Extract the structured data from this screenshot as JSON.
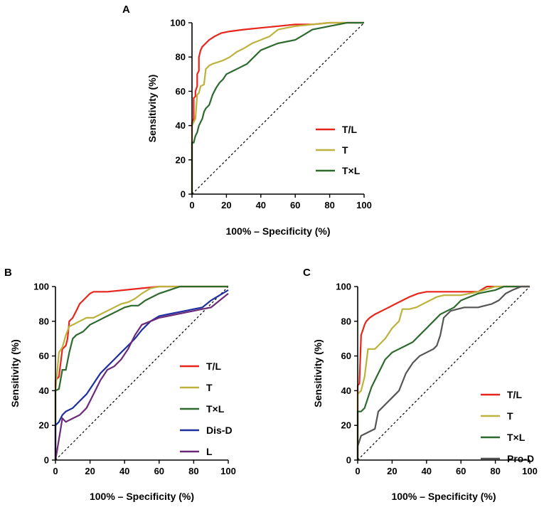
{
  "chart_data": [
    {
      "panel": "A",
      "type": "line",
      "title": "",
      "xlabel": "100% – Specificity (%)",
      "ylabel": "Sensitivity (%)",
      "xlim": [
        0,
        100
      ],
      "ylim": [
        0,
        100
      ],
      "xticks": [
        0,
        20,
        40,
        60,
        80,
        100
      ],
      "yticks": [
        0,
        20,
        40,
        60,
        80,
        100
      ],
      "legend_position": "right",
      "reference_line": "diagonal dashed",
      "series": [
        {
          "name": "T/L",
          "color": "#e8251c",
          "x": [
            0,
            0,
            1,
            1,
            2,
            2,
            3,
            3,
            4,
            4,
            5,
            6,
            8,
            10,
            13,
            17,
            22,
            30,
            40,
            50,
            60,
            70,
            80,
            90,
            100
          ],
          "y": [
            0,
            42,
            44,
            56,
            57,
            60,
            63,
            70,
            72,
            80,
            84,
            86,
            88,
            90,
            92,
            94,
            95,
            96,
            97,
            98,
            99,
            99,
            100,
            100,
            100
          ]
        },
        {
          "name": "T",
          "color": "#bcb23c",
          "x": [
            0,
            0,
            1,
            2,
            3,
            4,
            5,
            7,
            8,
            10,
            12,
            15,
            18,
            22,
            26,
            30,
            35,
            40,
            45,
            50,
            55,
            60,
            70,
            80,
            90,
            100
          ],
          "y": [
            0,
            40,
            42,
            44,
            58,
            59,
            63,
            64,
            73,
            75,
            76,
            77,
            78,
            80,
            83,
            85,
            88,
            90,
            92,
            96,
            97,
            98,
            99,
            100,
            100,
            100
          ]
        },
        {
          "name": "T×L",
          "color": "#2d6a2d",
          "x": [
            0,
            0,
            1,
            2,
            3,
            4,
            5,
            6,
            7,
            8,
            10,
            12,
            14,
            16,
            18,
            20,
            24,
            28,
            32,
            36,
            40,
            45,
            50,
            55,
            60,
            65,
            70,
            75,
            80,
            85,
            90,
            100
          ],
          "y": [
            0,
            30,
            30,
            34,
            36,
            40,
            42,
            44,
            48,
            50,
            52,
            58,
            62,
            65,
            67,
            70,
            72,
            74,
            76,
            80,
            84,
            86,
            88,
            89,
            90,
            93,
            96,
            97,
            98,
            99,
            100,
            100
          ]
        }
      ]
    },
    {
      "panel": "B",
      "type": "line",
      "title": "",
      "xlabel": "100% – Specificity (%)",
      "ylabel": "Sensitivity (%)",
      "xlim": [
        0,
        100
      ],
      "ylim": [
        0,
        100
      ],
      "xticks": [
        0,
        20,
        40,
        60,
        80,
        100
      ],
      "yticks": [
        0,
        20,
        40,
        60,
        80,
        100
      ],
      "legend_position": "right",
      "reference_line": "diagonal dashed",
      "series": [
        {
          "name": "T/L",
          "color": "#e8251c",
          "x": [
            0,
            0,
            2,
            4,
            6,
            7,
            8,
            10,
            12,
            14,
            16,
            18,
            20,
            22,
            30,
            40,
            50,
            60,
            70,
            80,
            90,
            100
          ],
          "y": [
            0,
            46,
            48,
            64,
            66,
            70,
            80,
            82,
            86,
            90,
            92,
            94,
            96,
            97,
            97,
            98,
            99,
            100,
            100,
            100,
            100,
            100
          ]
        },
        {
          "name": "T",
          "color": "#bcb23c",
          "x": [
            0,
            0,
            2,
            4,
            6,
            8,
            10,
            14,
            18,
            22,
            26,
            30,
            34,
            38,
            42,
            46,
            50,
            55,
            60,
            70,
            80,
            90,
            100
          ],
          "y": [
            0,
            40,
            62,
            65,
            72,
            77,
            78,
            80,
            82,
            82,
            84,
            86,
            88,
            90,
            91,
            93,
            96,
            99,
            100,
            100,
            100,
            100,
            100
          ]
        },
        {
          "name": "T×L",
          "color": "#2d6a2d",
          "x": [
            0,
            0,
            2,
            4,
            6,
            8,
            10,
            12,
            16,
            20,
            24,
            28,
            32,
            36,
            40,
            44,
            48,
            52,
            56,
            60,
            66,
            72,
            78,
            84,
            90,
            100
          ],
          "y": [
            0,
            40,
            41,
            52,
            52,
            62,
            70,
            72,
            74,
            78,
            80,
            82,
            84,
            86,
            88,
            89,
            89,
            92,
            94,
            96,
            98,
            100,
            100,
            100,
            100,
            100
          ]
        },
        {
          "name": "Dis-D",
          "color": "#1f2fa0",
          "x": [
            0,
            0,
            2,
            4,
            6,
            10,
            14,
            18,
            22,
            26,
            30,
            34,
            38,
            42,
            46,
            50,
            55,
            60,
            65,
            70,
            75,
            80,
            85,
            90,
            95,
            100
          ],
          "y": [
            0,
            20,
            22,
            26,
            28,
            30,
            34,
            38,
            44,
            50,
            54,
            58,
            62,
            66,
            70,
            75,
            80,
            83,
            84,
            85,
            86,
            87,
            88,
            92,
            95,
            98
          ]
        },
        {
          "name": "L",
          "color": "#6b2a7a",
          "x": [
            0,
            2,
            4,
            6,
            10,
            14,
            18,
            22,
            26,
            30,
            34,
            38,
            42,
            46,
            50,
            55,
            60,
            65,
            70,
            75,
            80,
            85,
            90,
            95,
            100
          ],
          "y": [
            0,
            12,
            24,
            22,
            24,
            26,
            30,
            38,
            46,
            52,
            54,
            58,
            64,
            72,
            78,
            80,
            82,
            83,
            84,
            85,
            86,
            87,
            88,
            92,
            96
          ]
        }
      ]
    },
    {
      "panel": "C",
      "type": "line",
      "title": "",
      "xlabel": "100% – Specificity (%)",
      "ylabel": "Sensitivity (%)",
      "xlim": [
        0,
        100
      ],
      "ylim": [
        0,
        100
      ],
      "xticks": [
        0,
        20,
        40,
        60,
        80,
        100
      ],
      "yticks": [
        0,
        20,
        40,
        60,
        80,
        100
      ],
      "legend_position": "bottom-right",
      "reference_line": "diagonal dashed",
      "series": [
        {
          "name": "T/L",
          "color": "#e8251c",
          "x": [
            0,
            0,
            1,
            2,
            3,
            4,
            5,
            7,
            10,
            14,
            18,
            22,
            26,
            30,
            35,
            40,
            50,
            60,
            70,
            75,
            80,
            90,
            100
          ],
          "y": [
            0,
            43,
            44,
            72,
            75,
            78,
            80,
            82,
            84,
            86,
            88,
            90,
            92,
            94,
            96,
            97,
            97,
            97,
            97,
            100,
            100,
            100,
            100
          ]
        },
        {
          "name": "T",
          "color": "#bcb23c",
          "x": [
            0,
            0,
            2,
            4,
            6,
            8,
            10,
            12,
            16,
            20,
            24,
            26,
            30,
            34,
            38,
            42,
            46,
            50,
            60,
            70,
            80,
            90,
            100
          ],
          "y": [
            0,
            38,
            40,
            48,
            64,
            64,
            64,
            66,
            70,
            76,
            80,
            87,
            87,
            88,
            90,
            92,
            94,
            95,
            95,
            97,
            100,
            100,
            100
          ]
        },
        {
          "name": "T×L",
          "color": "#2d6a2d",
          "x": [
            0,
            0,
            2,
            4,
            6,
            8,
            10,
            12,
            14,
            16,
            18,
            20,
            24,
            28,
            32,
            36,
            40,
            44,
            48,
            52,
            56,
            60,
            65,
            70,
            75,
            80,
            85,
            90,
            100
          ],
          "y": [
            0,
            28,
            28,
            30,
            36,
            42,
            46,
            50,
            54,
            58,
            60,
            62,
            64,
            66,
            68,
            72,
            76,
            80,
            84,
            86,
            88,
            92,
            94,
            96,
            97,
            98,
            100,
            100,
            100
          ]
        },
        {
          "name": "Pro-D",
          "color": "#555555",
          "x": [
            0,
            0,
            2,
            4,
            6,
            8,
            10,
            12,
            16,
            20,
            24,
            28,
            32,
            36,
            40,
            44,
            46,
            48,
            50,
            54,
            58,
            62,
            66,
            70,
            74,
            78,
            82,
            86,
            90,
            95,
            100
          ],
          "y": [
            0,
            8,
            14,
            15,
            16,
            17,
            18,
            28,
            32,
            36,
            40,
            50,
            56,
            60,
            62,
            64,
            66,
            72,
            82,
            86,
            87,
            88,
            88,
            88,
            89,
            90,
            92,
            96,
            98,
            100,
            100
          ]
        }
      ]
    }
  ]
}
